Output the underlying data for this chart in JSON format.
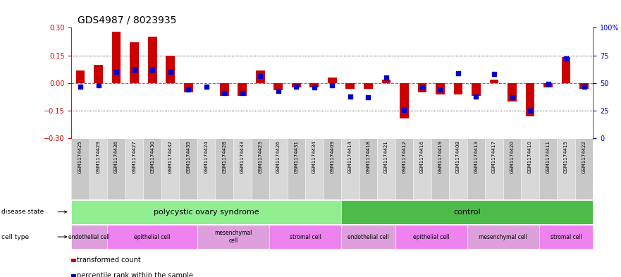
{
  "title": "GDS4987 / 8023935",
  "samples_display": [
    "GSM1174425",
    "GSM1174429",
    "GSM1174436",
    "GSM1174427",
    "GSM1174430",
    "GSM1174432",
    "GSM1174435",
    "GSM1174424",
    "GSM1174428",
    "GSM1174433",
    "GSM1174423",
    "GSM1174426",
    "GSM1174431",
    "GSM1174434",
    "GSM1174409",
    "GSM1174414",
    "GSM1174418",
    "GSM1174421",
    "GSM1174412",
    "GSM1174416",
    "GSM1174419",
    "GSM1174408",
    "GSM1174413",
    "GSM1174417",
    "GSM1174420",
    "GSM1174410",
    "GSM1174411",
    "GSM1174415",
    "GSM1174422"
  ],
  "red_values": [
    0.07,
    0.1,
    0.28,
    0.22,
    0.25,
    0.15,
    -0.05,
    0.0,
    -0.07,
    -0.07,
    0.07,
    -0.04,
    -0.025,
    -0.025,
    0.03,
    -0.03,
    -0.03,
    0.02,
    -0.19,
    -0.05,
    -0.06,
    -0.06,
    -0.07,
    0.02,
    -0.1,
    -0.18,
    -0.025,
    0.14,
    -0.03
  ],
  "blue_values_pct": [
    47,
    48,
    60,
    62,
    62,
    60,
    44,
    47,
    41,
    41,
    56,
    43,
    47,
    46,
    48,
    38,
    37,
    55,
    26,
    46,
    44,
    59,
    38,
    58,
    37,
    25,
    49,
    72,
    47
  ],
  "disease_state_groups": [
    {
      "label": "polycystic ovary syndrome",
      "start": 0,
      "end": 15,
      "color": "#90EE90"
    },
    {
      "label": "control",
      "start": 15,
      "end": 29,
      "color": "#4CBB47"
    }
  ],
  "cell_type_groups": [
    {
      "label": "endothelial cell",
      "start": 0,
      "end": 2
    },
    {
      "label": "epithelial cell",
      "start": 2,
      "end": 7
    },
    {
      "label": "mesenchymal\ncell",
      "start": 7,
      "end": 11
    },
    {
      "label": "stromal cell",
      "start": 11,
      "end": 15
    },
    {
      "label": "endothelial cell",
      "start": 15,
      "end": 18
    },
    {
      "label": "epithelial cell",
      "start": 18,
      "end": 22
    },
    {
      "label": "mesenchymal cell",
      "start": 22,
      "end": 26
    },
    {
      "label": "stromal cell",
      "start": 26,
      "end": 29
    }
  ],
  "cell_colors": [
    "#DDA0DD",
    "#EE82EE",
    "#DDA0DD",
    "#EE82EE",
    "#DDA0DD",
    "#EE82EE",
    "#DDA0DD",
    "#EE82EE"
  ],
  "ylim": [
    -0.3,
    0.3
  ],
  "yticks_left": [
    -0.3,
    -0.15,
    0.0,
    0.15,
    0.3
  ],
  "yticks_right_pct": [
    0,
    25,
    50,
    75,
    100
  ],
  "yticks_right_val": [
    -0.3,
    -0.15,
    0.0,
    0.15,
    0.3
  ],
  "bar_color": "#CC0000",
  "dot_color": "#0000CC",
  "zero_line_color": "#FF4444",
  "dotted_line_color": "#000000",
  "bg_color": "#FFFFFF",
  "title_fontsize": 10,
  "tick_fontsize": 7,
  "label_fontsize": 8,
  "legend_fontsize": 7,
  "sample_fontsize": 5
}
